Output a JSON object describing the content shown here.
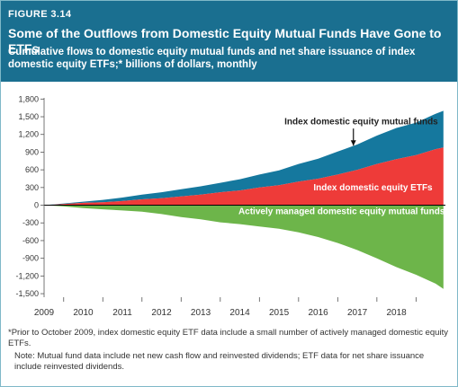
{
  "figure": {
    "label": "FIGURE 3.14",
    "title": "Some of the Outflows from Domestic Equity Mutual Funds Have Gone to ETFs",
    "subtitle": "Cumulative flows to domestic equity mutual funds and net share issuance of index domestic equity ETFs;* billions of dollars, monthly"
  },
  "colors": {
    "header_bg": "#1a6f90",
    "index_mf": "#15789e",
    "index_etf": "#ee3b39",
    "active_mf": "#6db54a",
    "zero_line": "#000000"
  },
  "chart_data": {
    "type": "area",
    "title": "",
    "xlabel": "",
    "ylabel": "",
    "x_ticks": [
      "2009",
      "2010",
      "2011",
      "2012",
      "2013",
      "2014",
      "2015",
      "2016",
      "2017",
      "2018"
    ],
    "y_ticks": [
      1800,
      1500,
      1200,
      900,
      600,
      300,
      0,
      -300,
      -600,
      -900,
      -1200,
      -1500
    ],
    "y_tick_labels": [
      "1,800",
      "1,500",
      "1,200",
      "900",
      "600",
      "300",
      "0",
      "-300",
      "-600",
      "-900",
      "-1,200",
      "-1,500"
    ],
    "xlim": [
      2008.5,
      2018.75
    ],
    "ylim": [
      -1560,
      1820
    ],
    "stacked": true,
    "x": [
      2008.5,
      2009.0,
      2009.5,
      2010.0,
      2010.5,
      2011.0,
      2011.5,
      2012.0,
      2012.5,
      2013.0,
      2013.5,
      2014.0,
      2014.5,
      2015.0,
      2015.5,
      2016.0,
      2016.5,
      2017.0,
      2017.5,
      2018.0,
      2018.5,
      2018.7
    ],
    "series": [
      {
        "name": "Index domestic equity ETFs",
        "values": [
          0,
          20,
          40,
          50,
          70,
          100,
          120,
          150,
          180,
          220,
          250,
          300,
          340,
          400,
          450,
          520,
          600,
          700,
          780,
          850,
          950,
          980
        ]
      },
      {
        "name": "Index domestic equity mutual funds",
        "values": [
          0,
          10,
          20,
          40,
          60,
          80,
          100,
          120,
          140,
          160,
          190,
          220,
          250,
          300,
          340,
          390,
          430,
          480,
          530,
          550,
          600,
          620
        ]
      },
      {
        "name": "Actively managed domestic equity mutual funds",
        "values": [
          0,
          -20,
          -50,
          -70,
          -90,
          -110,
          -150,
          -200,
          -240,
          -290,
          -320,
          -360,
          -400,
          -460,
          -540,
          -640,
          -760,
          -900,
          -1050,
          -1180,
          -1330,
          -1420
        ]
      }
    ],
    "annotations": [
      "Index domestic equity mutual funds",
      "Index domestic equity ETFs",
      "Actively managed domestic equity mutual funds"
    ],
    "grid": false
  },
  "notes": {
    "footnote": "*Prior to October 2009, index domestic equity ETF data include a small number of actively managed domestic equity ETFs.",
    "note": "Note: Mutual fund data include net new cash flow and reinvested dividends; ETF data for net share issuance include reinvested dividends."
  }
}
